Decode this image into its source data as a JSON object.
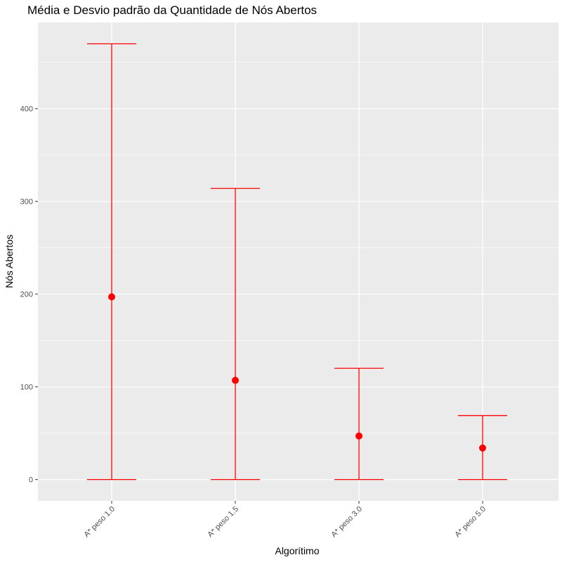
{
  "chart_data": {
    "type": "errorbar",
    "title": "Média e Desvio padrão da Quantidade de Nós Abertos",
    "xlabel": "Algorítimo",
    "ylabel": "Nós Abertos",
    "categories": [
      "A* peso 1.0",
      "A* peso 1.5",
      "A* peso 3.0",
      "A* peso 5.0"
    ],
    "mean": [
      197,
      107,
      47,
      34
    ],
    "lower": [
      0,
      0,
      0,
      0
    ],
    "upper": [
      470,
      314,
      120,
      69
    ],
    "yticks": [
      0,
      100,
      200,
      300,
      400
    ],
    "ylim": [
      -23,
      493
    ],
    "grid": true,
    "color": "#ff0000",
    "panel_color": "#ebebeb",
    "grid_color": "#ffffff"
  }
}
